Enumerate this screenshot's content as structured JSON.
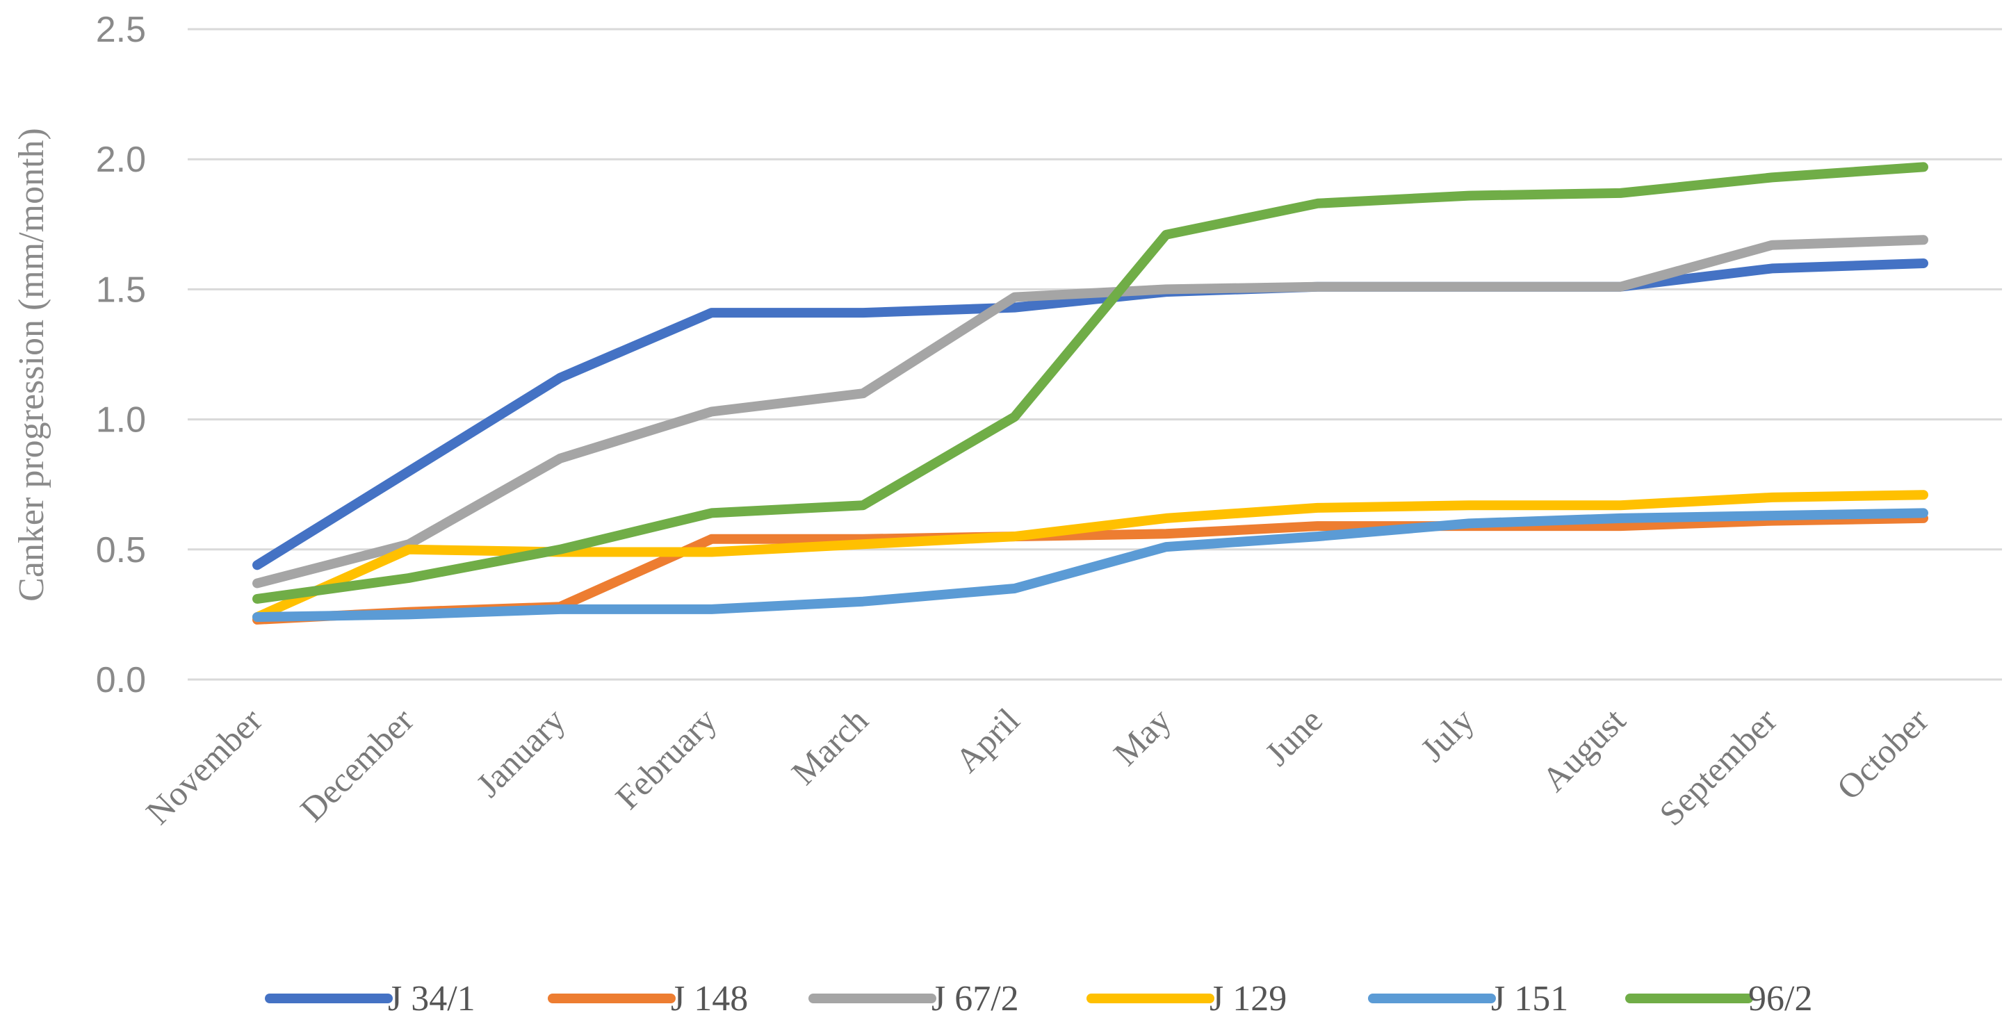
{
  "chart_data": {
    "type": "line",
    "title": "",
    "xlabel": "",
    "ylabel": "Canker progression (mm/month)",
    "ylim": [
      0,
      2.5
    ],
    "yticks": [
      "0.0",
      "0.5",
      "1.0",
      "1.5",
      "2.0",
      "2.5"
    ],
    "grid": true,
    "legend_position": "bottom",
    "categories": [
      "November",
      "December",
      "January",
      "February",
      "March",
      "April",
      "May",
      "June",
      "July",
      "August",
      "September",
      "October"
    ],
    "series": [
      {
        "name": "J 34/1",
        "color": "#4472C4",
        "values": [
          0.44,
          0.8,
          1.16,
          1.41,
          1.41,
          1.43,
          1.49,
          1.51,
          1.51,
          1.51,
          1.58,
          1.6
        ]
      },
      {
        "name": "J 148",
        "color": "#ED7D31",
        "values": [
          0.23,
          0.26,
          0.28,
          0.54,
          0.54,
          0.55,
          0.56,
          0.59,
          0.59,
          0.59,
          0.61,
          0.62
        ]
      },
      {
        "name": "J 67/2",
        "color": "#A5A5A5",
        "values": [
          0.37,
          0.52,
          0.85,
          1.03,
          1.1,
          1.47,
          1.5,
          1.51,
          1.51,
          1.51,
          1.67,
          1.69
        ]
      },
      {
        "name": "J 129",
        "color": "#FFC000",
        "values": [
          0.24,
          0.5,
          0.49,
          0.49,
          0.52,
          0.55,
          0.62,
          0.66,
          0.67,
          0.67,
          0.7,
          0.71
        ]
      },
      {
        "name": "J 151",
        "color": "#5B9BD5",
        "values": [
          0.24,
          0.25,
          0.27,
          0.27,
          0.3,
          0.35,
          0.51,
          0.55,
          0.6,
          0.62,
          0.63,
          0.64
        ]
      },
      {
        "name": "96/2",
        "color": "#70AD47",
        "values": [
          0.31,
          0.39,
          0.5,
          0.64,
          0.67,
          1.01,
          1.71,
          1.83,
          1.86,
          1.87,
          1.93,
          1.97
        ]
      }
    ]
  }
}
